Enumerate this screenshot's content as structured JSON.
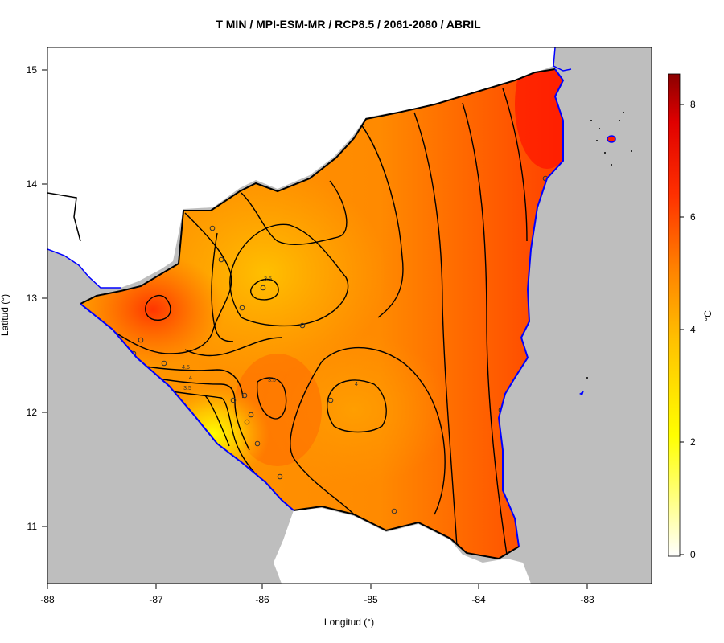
{
  "title": "T MIN / MPI-ESM-MR / RCP8.5 / 2061-2080 / ABRIL",
  "x_axis": {
    "label": "Longitud (°)",
    "ticks": [
      "-88",
      "-87",
      "-86",
      "-85",
      "-84",
      "-83"
    ]
  },
  "y_axis": {
    "label": "Latitud (°)",
    "ticks": [
      "11",
      "12",
      "13",
      "14",
      "15"
    ]
  },
  "colorbar": {
    "label": "°C",
    "ticks": [
      "0",
      "2",
      "4",
      "6",
      "8"
    ]
  },
  "contour_labels": [
    "3.5",
    "3.5",
    "4",
    "4.5",
    "4",
    "3.5"
  ],
  "colors": {
    "ocean": "#bebebe",
    "coastline": "#0000ff",
    "border": "#000000"
  }
}
